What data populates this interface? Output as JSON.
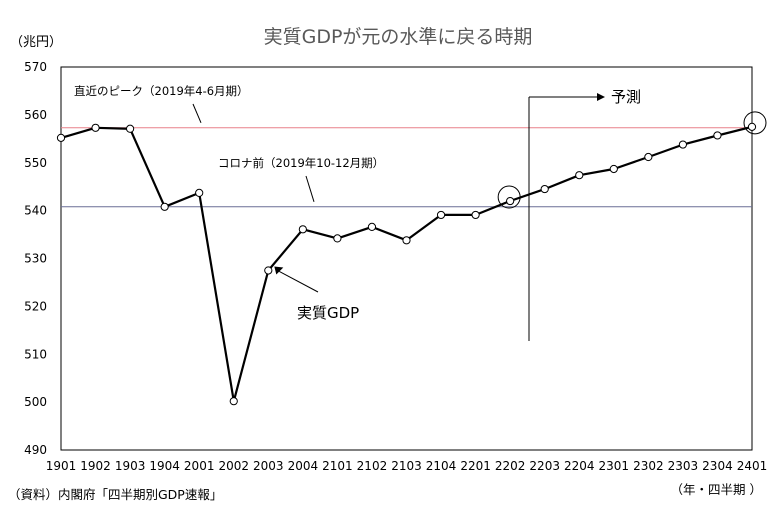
{
  "chart_data": {
    "type": "line",
    "title": "実質GDPが元の水準に戻る時期",
    "y_unit_label": "（兆円）",
    "x_unit_label": "（年・四半期 ）",
    "source": "（資料）内閣府「四半期別GDP速報」",
    "ylim": [
      490,
      570
    ],
    "y_ticks": [
      "490",
      "500",
      "510",
      "520",
      "530",
      "540",
      "550",
      "560",
      "570"
    ],
    "categories": [
      "1901",
      "1902",
      "1903",
      "1904",
      "2001",
      "2002",
      "2003",
      "2004",
      "2101",
      "2102",
      "2103",
      "2104",
      "2201",
      "2202",
      "2203",
      "2204",
      "2301",
      "2302",
      "2303",
      "2304",
      "2401"
    ],
    "series": [
      {
        "name": "実質GDP",
        "values": [
          555.2,
          557.3,
          557.1,
          540.8,
          543.7,
          500.2,
          527.5,
          536.1,
          534.2,
          536.6,
          533.8,
          539.1,
          539.1,
          542.0,
          544.5,
          547.4,
          548.7,
          551.2,
          553.8,
          555.7,
          557.5
        ]
      }
    ],
    "reference_lines": [
      {
        "label": "直近のピーク（2019年4-6月期）",
        "value": 557.3,
        "color": "#e8808a"
      },
      {
        "label": "コロナ前（2019年10-12月期）",
        "value": 540.8,
        "color": "#6a6f96"
      }
    ],
    "forecast_label": "予測",
    "forecast_start": "2202",
    "highlighted_points": [
      "2202",
      "2401"
    ],
    "series_label": "実質GDP",
    "colors": {
      "line": "#000000",
      "marker_fill": "#ffffff",
      "frame": "#000000"
    }
  }
}
